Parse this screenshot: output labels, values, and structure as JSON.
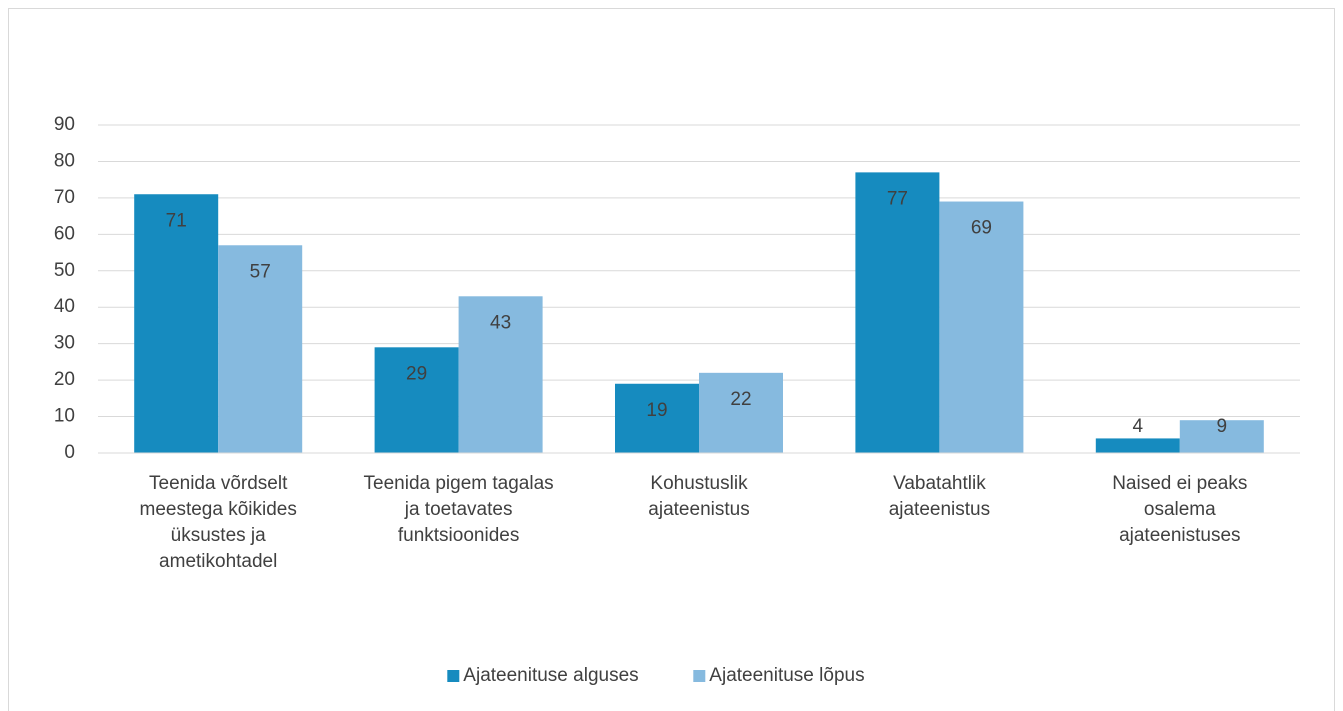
{
  "chart_data": {
    "type": "bar",
    "categories": [
      "Teenida võrdselt meestega kõikides üksustes ja ametikohtadel",
      "Teenida pigem tagalas ja toetavates funktsioonides",
      "Kohustuslik ajateenistus",
      "Vabatahtlik ajateenistus",
      "Naised ei peaks osalema ajateenistuses"
    ],
    "series": [
      {
        "name": "Ajateenituse alguses",
        "color": "#168bbf",
        "values": [
          71,
          29,
          19,
          77,
          4
        ]
      },
      {
        "name": "Ajateenituse lõpus",
        "color": "#86badf",
        "values": [
          57,
          43,
          22,
          69,
          9
        ]
      }
    ],
    "ylim": [
      0,
      90
    ],
    "yticks": [
      0,
      10,
      20,
      30,
      40,
      50,
      60,
      70,
      80,
      90
    ],
    "grid": true,
    "legend": "bottom"
  }
}
